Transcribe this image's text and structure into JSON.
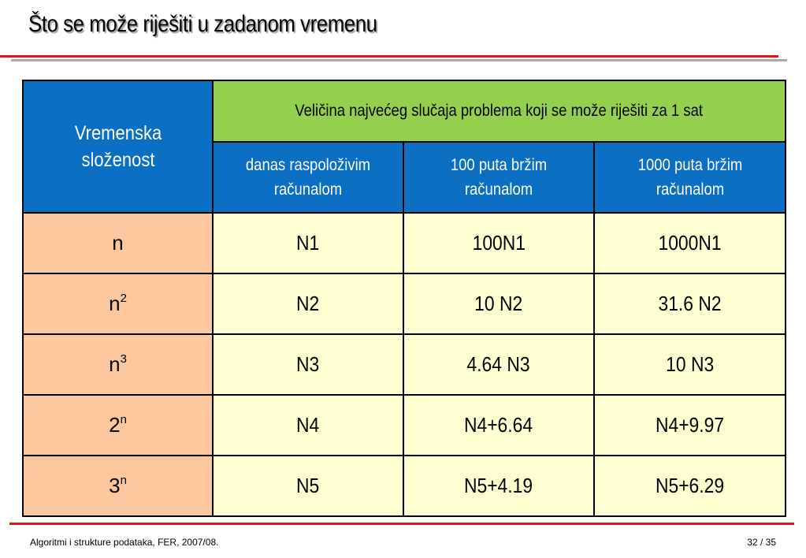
{
  "slide": {
    "title": "Što se može riješiti u zadanom vremenu"
  },
  "table": {
    "corner_header": "Vremenska složenost",
    "group_header": "Veličina najvećeg slučaja problema koji se može riješiti za 1 sat",
    "sub_headers": [
      "danas raspoloživim računalom",
      "100 puta bržim računalom",
      "1000 puta bržim računalom"
    ],
    "rows": [
      {
        "base": "n",
        "exp": "",
        "values": [
          "N1",
          "100N1",
          "1000N1"
        ]
      },
      {
        "base": "n",
        "exp": "2",
        "values": [
          "N2",
          "10 N2",
          "31.6 N2"
        ]
      },
      {
        "base": "n",
        "exp": "3",
        "values": [
          "N3",
          "4.64 N3",
          "10 N3"
        ]
      },
      {
        "base": "2",
        "exp": "n",
        "values": [
          "N4",
          "N4+6.64",
          "N4+9.97"
        ]
      },
      {
        "base": "3",
        "exp": "n",
        "values": [
          "N5",
          "N5+4.19",
          "N5+6.29"
        ]
      }
    ]
  },
  "footer": {
    "left": "Algoritmi i strukture podataka, FER, 2007/08.",
    "right": "32 / 35"
  },
  "colors": {
    "accent_red": "#e8121e",
    "header_blue": "#0b6fc4",
    "header_green": "#92d04e",
    "label_peach": "#fbc79e",
    "cell_cream": "#ffffd2"
  }
}
